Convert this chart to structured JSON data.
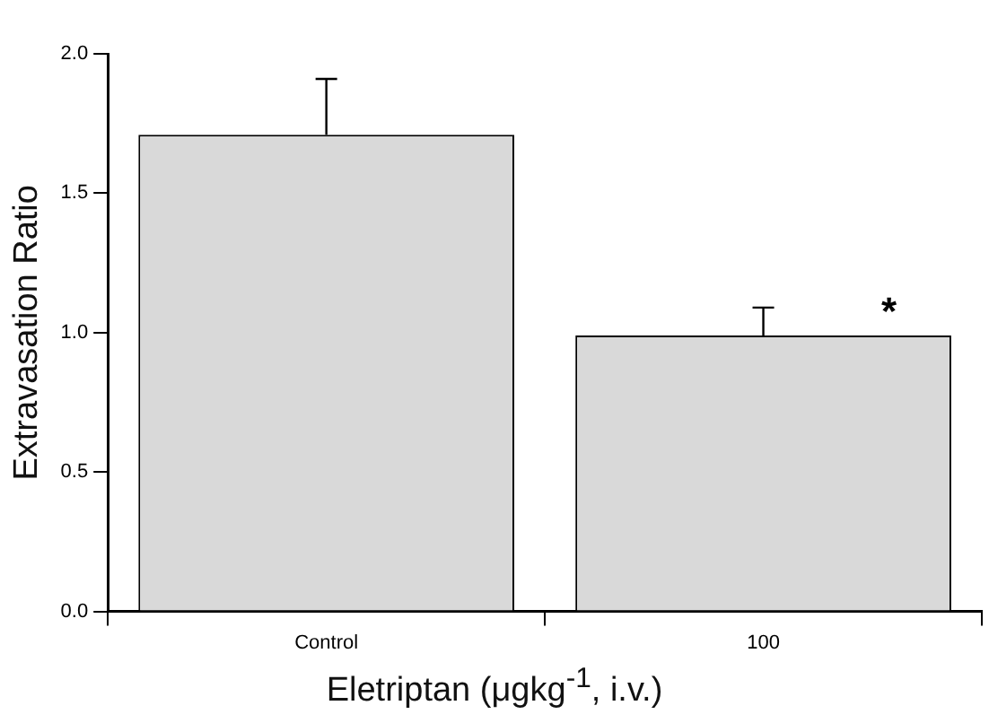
{
  "chart_data": {
    "type": "bar",
    "xlabel": "Eletriptan (μgkg$^{-1}$, i.v.)",
    "ylabel": "Extravasation Ratio",
    "categories": [
      "Control",
      "100"
    ],
    "values": [
      1.71,
      0.99
    ],
    "errors": [
      [
        1.71,
        1.91
      ],
      [
        0.99,
        1.09
      ]
    ],
    "color": "#d9d9d9",
    "ylim": [
      0,
      2
    ],
    "yticks": [
      {
        "value": 0,
        "label": "0.0"
      },
      {
        "value": 0.5,
        "label": "0.5"
      },
      {
        "value": 1,
        "label": "1.0"
      },
      {
        "value": 1.5,
        "label": "1.5"
      },
      {
        "value": 2,
        "label": "2.0"
      }
    ],
    "annotations": [
      "*"
    ],
    "grid": false,
    "legend": false
  }
}
